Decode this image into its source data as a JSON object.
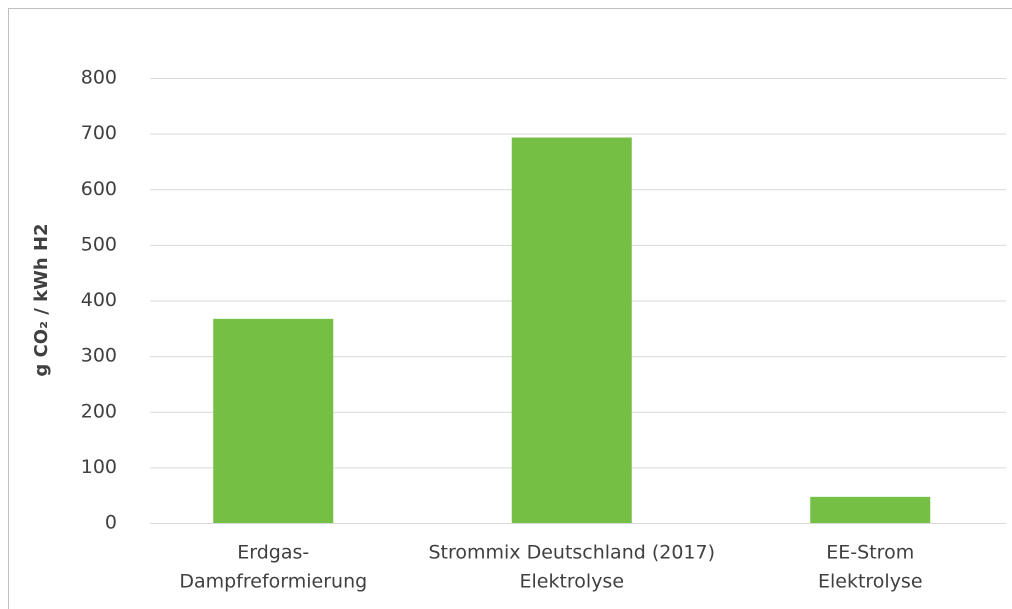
{
  "chart_data": {
    "type": "bar",
    "y_label": "g CO₂ / kWh H2",
    "categories": [
      [
        "Erdgas-",
        "Dampfreformierung"
      ],
      [
        "Strommix Deutschland (2017)",
        "Elektrolyse"
      ],
      [
        "EE-Strom",
        "Elektrolyse"
      ]
    ],
    "values": [
      367,
      693,
      47
    ],
    "color": "#74bf44",
    "ylim": [
      0,
      800
    ],
    "yticks": [
      0,
      100,
      200,
      300,
      400,
      500,
      600,
      700,
      800
    ],
    "grid": true
  }
}
